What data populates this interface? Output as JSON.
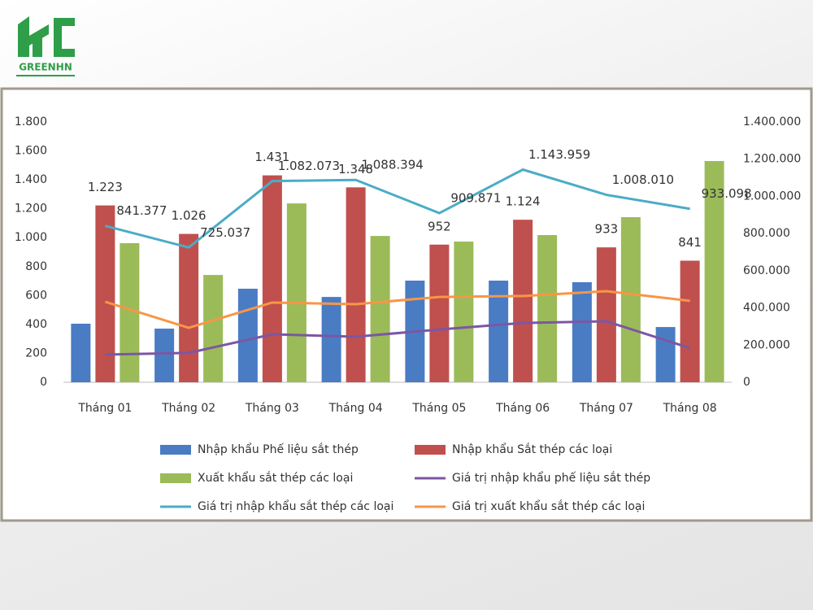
{
  "logo": {
    "text": "GREENHN"
  },
  "chart_data": {
    "type": "bar",
    "categories": [
      "Tháng 01",
      "Tháng 02",
      "Tháng 03",
      "Tháng 04",
      "Tháng 05",
      "Tháng 06",
      "Tháng 07",
      "Tháng 08"
    ],
    "ylim": [
      0,
      1800
    ],
    "yticks": [
      0,
      200,
      400,
      600,
      800,
      {
        "value": 1000,
        "label": "1.000"
      },
      {
        "value": 1200,
        "label": "1.200"
      },
      {
        "value": 1400,
        "label": "1.400"
      },
      {
        "value": 1600,
        "label": "1.600"
      },
      {
        "value": 1800,
        "label": "1.800"
      }
    ],
    "y2lim": [
      0,
      1400000
    ],
    "y2ticks": [
      0,
      {
        "value": 200000,
        "label": "200.000"
      },
      {
        "value": 400000,
        "label": "400.000"
      },
      {
        "value": 600000,
        "label": "600.000"
      },
      {
        "value": 800000,
        "label": "800.000"
      },
      {
        "value": 1000000,
        "label": "1.000.000"
      },
      {
        "value": 1200000,
        "label": "1.200.000"
      },
      {
        "value": 1400000,
        "label": "1.400.000"
      }
    ],
    "grid": false,
    "series": [
      {
        "name": "Nhập khẩu Phế liệu sắt thép",
        "type": "bar",
        "color": "#4a7cc4",
        "values": [
          405,
          371,
          647,
          590,
          703,
          703,
          692,
          382
        ]
      },
      {
        "name": "Nhập khẩu Sắt thép các loại",
        "type": "bar",
        "color": "#c0504d",
        "values": [
          1223,
          1026,
          1431,
          1348,
          952,
          1124,
          933,
          841
        ],
        "value_labels": [
          "1.223",
          "1.026",
          "1.431",
          "1.348",
          "952",
          "1.124",
          "933",
          "841"
        ]
      },
      {
        "name": "Xuất khẩu sắt thép các loại",
        "type": "bar",
        "color": "#9bbb59",
        "values": [
          962,
          742,
          1237,
          1012,
          973,
          1018,
          1142,
          1530
        ]
      },
      {
        "name": "Giá trị nhập khẩu phế liệu sắt thép",
        "type": "line",
        "axis": "y2",
        "color": "#7b57a3",
        "values": [
          149000,
          158000,
          258000,
          245000,
          284000,
          319000,
          328000,
          184000
        ]
      },
      {
        "name": "Giá trị nhập khẩu sắt thép các loại",
        "type": "line",
        "axis": "y2",
        "color": "#4bacc6",
        "values": [
          841377,
          725037,
          1082073,
          1088394,
          909871,
          1143959,
          1008010,
          933098
        ],
        "value_labels": [
          "841.377",
          "725.037",
          "1.082.073",
          "1.088.394",
          "909.871",
          "1.143.959",
          "1.008.010",
          "933.098"
        ]
      },
      {
        "name": "Giá trị xuất khẩu sắt thép các loại",
        "type": "line",
        "axis": "y2",
        "color": "#f79646",
        "values": [
          433000,
          293000,
          429000,
          420000,
          459000,
          464000,
          490000,
          438000
        ]
      }
    ]
  }
}
